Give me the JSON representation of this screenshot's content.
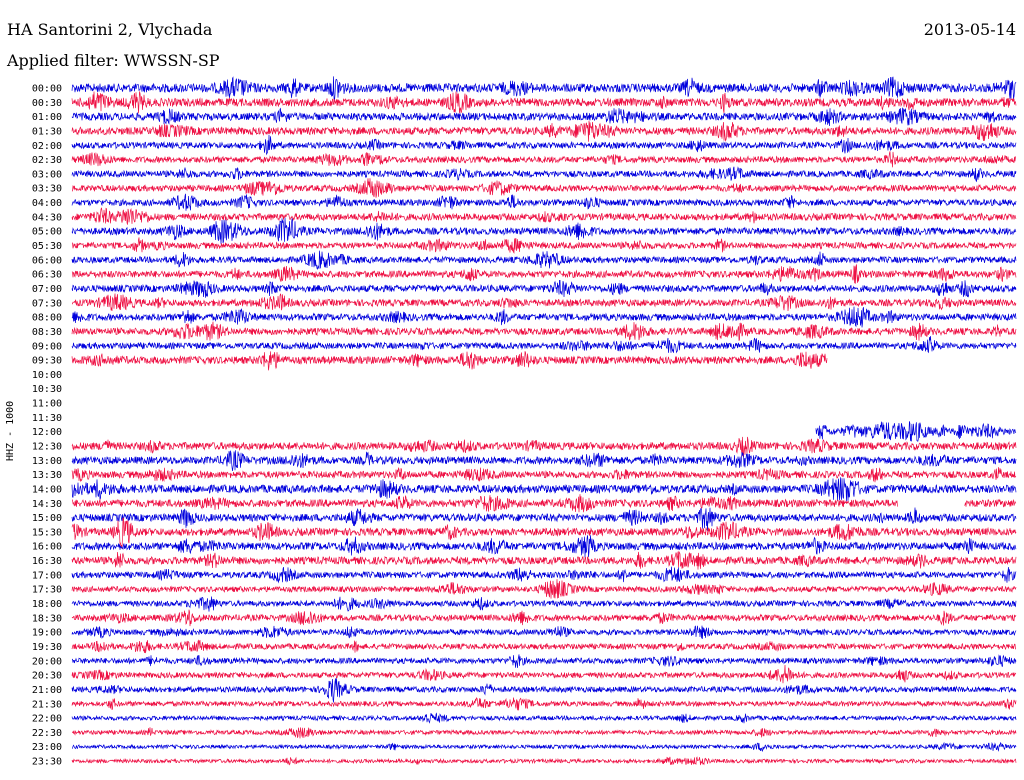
{
  "header": {
    "title": "HA Santorini 2, Vlychada",
    "date": "2013-05-14",
    "filter": "Applied filter: WWSSN-SP"
  },
  "chart_data": {
    "type": "line",
    "title": "HA Santorini 2, Vlychada",
    "ylabel": "HHZ - 1000",
    "row_labels": [
      "00:00",
      "00:30",
      "01:00",
      "01:30",
      "02:00",
      "02:30",
      "03:00",
      "03:30",
      "04:00",
      "04:30",
      "05:00",
      "05:30",
      "06:00",
      "06:30",
      "07:00",
      "07:30",
      "08:00",
      "08:30",
      "09:00",
      "09:30",
      "10:00",
      "10:30",
      "11:00",
      "11:30",
      "12:00",
      "12:30",
      "13:00",
      "13:30",
      "14:00",
      "14:30",
      "15:00",
      "15:30",
      "16:00",
      "16:30",
      "17:00",
      "17:30",
      "18:00",
      "18:30",
      "19:00",
      "19:30",
      "20:00",
      "20:30",
      "21:00",
      "21:30",
      "22:00",
      "22:30",
      "23:00",
      "23:30"
    ],
    "colors": {
      "even": "#0000dd",
      "odd": "#ee1144"
    },
    "trace_coverage": [
      [
        0,
        1
      ],
      [
        0,
        1
      ],
      [
        0,
        1
      ],
      [
        0,
        1
      ],
      [
        0,
        1
      ],
      [
        0,
        1
      ],
      [
        0,
        1
      ],
      [
        0,
        1
      ],
      [
        0,
        1
      ],
      [
        0,
        1
      ],
      [
        0,
        1
      ],
      [
        0,
        1
      ],
      [
        0,
        1
      ],
      [
        0,
        1
      ],
      [
        0,
        1
      ],
      [
        0,
        1
      ],
      [
        0,
        1
      ],
      [
        0,
        1
      ],
      [
        0,
        1
      ],
      [
        0,
        0.8
      ],
      null,
      null,
      null,
      null,
      [
        0.788,
        1
      ],
      [
        0,
        1
      ],
      [
        0,
        1
      ],
      [
        0,
        1
      ],
      [
        0,
        1
      ],
      [
        0,
        1
      ],
      [
        0,
        1
      ],
      [
        0,
        1
      ],
      [
        0,
        1
      ],
      [
        0,
        1
      ],
      [
        0,
        1
      ],
      [
        0,
        1
      ],
      [
        0,
        1
      ],
      [
        0,
        1
      ],
      [
        0,
        1
      ],
      [
        0,
        1
      ],
      [
        0,
        1
      ],
      [
        0,
        1
      ],
      [
        0,
        1
      ],
      [
        0,
        1
      ],
      [
        0,
        1
      ],
      [
        0,
        1
      ],
      [
        0,
        1
      ],
      [
        0,
        1
      ]
    ],
    "trace_gaps": [
      {
        "row": 29,
        "from": 0.875,
        "to": 0.945
      }
    ],
    "activity": [
      1.0,
      0.9,
      0.8,
      0.8,
      0.6,
      0.6,
      0.6,
      0.6,
      0.6,
      0.7,
      0.7,
      0.6,
      0.6,
      0.7,
      0.7,
      0.7,
      0.7,
      0.7,
      0.6,
      0.8,
      0,
      0,
      0,
      0,
      0.7,
      0.8,
      0.8,
      0.7,
      0.9,
      0.8,
      0.8,
      0.8,
      0.8,
      0.8,
      0.6,
      0.5,
      0.5,
      0.6,
      0.5,
      0.5,
      0.5,
      0.5,
      0.5,
      0.4,
      0.3,
      0.3,
      0.2,
      0.2
    ]
  }
}
